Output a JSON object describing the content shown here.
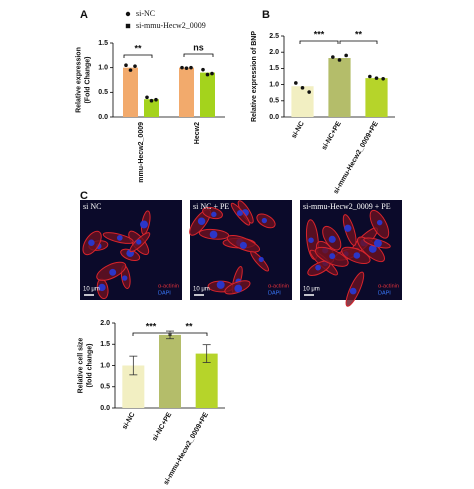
{
  "chart_data": [
    {
      "type": "bar",
      "panel": "A",
      "ylabel": [
        "Relative expression",
        "(Fold Change)"
      ],
      "categories": [
        "mmu-Hecw2_0009",
        "Hecw2"
      ],
      "series": [
        {
          "name": "si-NC",
          "color": "#f2aa6c",
          "values": [
            1.0,
            1.0
          ],
          "points": [
            [
              1.05,
              0.95,
              1.03
            ],
            [
              1.0,
              0.99,
              1.0
            ]
          ]
        },
        {
          "name": "si-mmu-Hecw2_0009",
          "color": "#a4d31c",
          "values": [
            0.36,
            0.9
          ],
          "points": [
            [
              0.4,
              0.33,
              0.35
            ],
            [
              0.96,
              0.86,
              0.88
            ]
          ]
        }
      ],
      "ylim": [
        0,
        1.5
      ],
      "yticks": [
        {
          "value": 0,
          "label": "0.0"
        },
        {
          "value": 0.5,
          "label": "0.5"
        },
        {
          "value": 1,
          "label": "1.0"
        },
        {
          "value": 1.5,
          "label": "1.5"
        }
      ],
      "annotations": [
        "**",
        "ns"
      ]
    },
    {
      "type": "bar",
      "panel": "B",
      "ylabel": [
        "Relative expression of BNP"
      ],
      "categories": [
        "si-NC",
        "si-NC+PE",
        "si-mmu-Hecw2_0009+PE"
      ],
      "values": [
        0.95,
        1.82,
        1.2
      ],
      "colors": [
        "#f2efc2",
        "#b4bd6a",
        "#b6d42a"
      ],
      "points": [
        [
          1.05,
          0.9,
          0.77
        ],
        [
          1.85,
          1.76,
          1.9
        ],
        [
          1.25,
          1.2,
          1.18
        ]
      ],
      "ylim": [
        0,
        2.5
      ],
      "yticks": [
        {
          "value": 0,
          "label": "0.0"
        },
        {
          "value": 0.5,
          "label": "0.5"
        },
        {
          "value": 1,
          "label": "1.0"
        },
        {
          "value": 1.5,
          "label": "1.5"
        },
        {
          "value": 2,
          "label": "2.0"
        },
        {
          "value": 2.5,
          "label": "2.5"
        }
      ],
      "annotations": [
        "***",
        "**"
      ]
    },
    {
      "type": "bar",
      "panel": "C",
      "ylabel": [
        "Relative cell size",
        "(fold change)"
      ],
      "categories": [
        "si-NC",
        "si-NC+PE",
        "si-mmu-Hecw2_0009+PE"
      ],
      "values": [
        1.0,
        1.72,
        1.28
      ],
      "errors": [
        0.22,
        0.09,
        0.21
      ],
      "colors": [
        "#f2efc2",
        "#b4bd6a",
        "#b6d42a"
      ],
      "ylim": [
        0,
        2
      ],
      "yticks": [
        {
          "value": 0,
          "label": "0.0"
        },
        {
          "value": 0.5,
          "label": "0.5"
        },
        {
          "value": 1,
          "label": "1.0"
        },
        {
          "value": 1.5,
          "label": "1.5"
        },
        {
          "value": 2,
          "label": "2.0"
        }
      ],
      "annotations": [
        "***",
        "**"
      ]
    }
  ],
  "images": [
    {
      "label": "si NC",
      "scale": "10 μm",
      "stains": [
        "α-actinin",
        "DAPI"
      ]
    },
    {
      "label": "si NC + PE",
      "scale": "10 μm",
      "stains": [
        "α-actinin",
        "DAPI"
      ]
    },
    {
      "label": "si-mmu-Hecw2_0009 + PE",
      "scale": "10 μm",
      "stains": [
        "α-actinin",
        "DAPI"
      ]
    }
  ]
}
